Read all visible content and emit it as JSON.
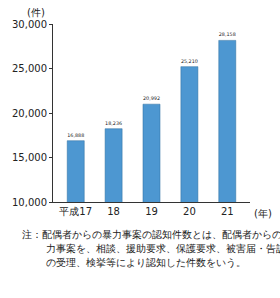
{
  "chart_data": {
    "type": "bar",
    "categories": [
      "平成17",
      "18",
      "19",
      "20",
      "21"
    ],
    "values": [
      16888,
      18236,
      20992,
      25210,
      28158
    ],
    "value_labels": [
      "16,888",
      "18,236",
      "20,992",
      "25,210",
      "28,158"
    ],
    "color": "#4d97d1",
    "ylim": [
      10000,
      30000
    ],
    "yticks": [
      {
        "value": 10000,
        "label": "10,000"
      },
      {
        "value": 15000,
        "label": "15,000"
      },
      {
        "value": 20000,
        "label": "20,000"
      },
      {
        "value": 25000,
        "label": "25,000"
      },
      {
        "value": 30000,
        "label": "30,000"
      }
    ],
    "grid": false,
    "data_labels": true,
    "ylabel": "(件)",
    "xlabel": "(年)",
    "annotations": [
      "注：配偶者からの暴力事案の認知件数とは、配偶者からの暴力事案を、相談、援助要求、保護要求、被害届・告訴状の受理、検挙等により認知した件数をいう。"
    ]
  }
}
